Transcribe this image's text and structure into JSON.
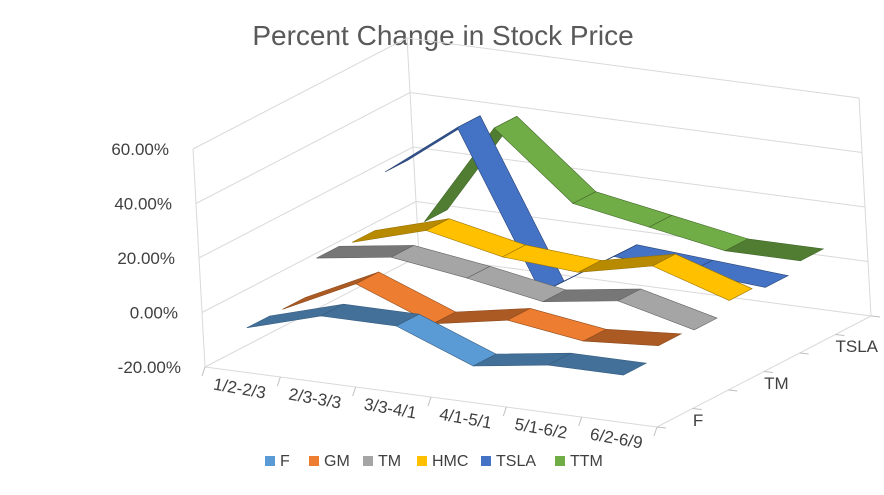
{
  "chart_data": {
    "type": "line",
    "subtype": "3d-line",
    "title": "Percent Change in Stock Price",
    "categories": [
      "1/2-2/3",
      "2/3-3/3",
      "3/3-4/1",
      "4/1-5/1",
      "5/1-6/2",
      "6/2-6/9"
    ],
    "depth_axis_labels": [
      "F",
      "TM",
      "TSLA"
    ],
    "y_ticks": [
      "-20.00%",
      "0.00%",
      "20.00%",
      "40.00%",
      "60.00%"
    ],
    "ylim": [
      -20,
      60
    ],
    "grid": true,
    "legend_position": "bottom",
    "series": [
      {
        "name": "F",
        "color": "#5B9BD5",
        "values": [
          -5,
          3,
          3,
          -8,
          -4,
          -4
        ]
      },
      {
        "name": "GM",
        "color": "#ED7D31",
        "values": [
          -5,
          8,
          -3,
          2,
          -2,
          0
        ]
      },
      {
        "name": "TM",
        "color": "#A5A5A5",
        "values": [
          7,
          11,
          7,
          2,
          6,
          -1
        ]
      },
      {
        "name": "HMC",
        "color": "#FFC000",
        "values": [
          6,
          14,
          8,
          6,
          12,
          3
        ]
      },
      {
        "name": "TSLA",
        "color": "#4472C4",
        "values": [
          25,
          45,
          -12,
          5,
          3,
          1
        ]
      },
      {
        "name": "TTM",
        "color": "#70AD47",
        "values": [
          0,
          38,
          14,
          9,
          4,
          4
        ]
      }
    ]
  }
}
